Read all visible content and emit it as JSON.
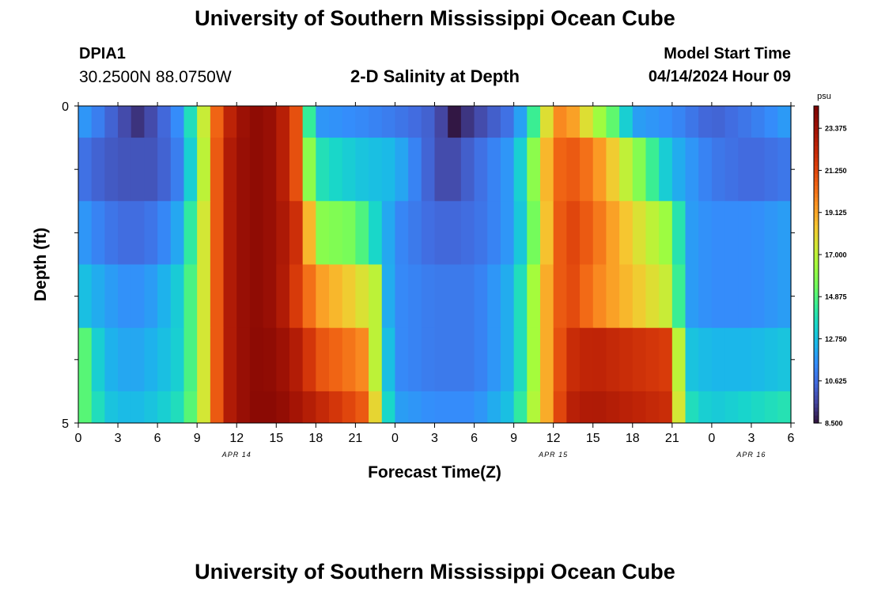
{
  "header": {
    "title": "University of Southern Mississippi Ocean Cube",
    "station": "DPIA1",
    "coordinates": "30.2500N  88.0750W",
    "subtitle": "2-D Salinity at Depth",
    "model_start_label": "Model Start Time",
    "model_start_value": "04/14/2024 Hour 09"
  },
  "footer": {
    "title": "University of Southern Mississippi Ocean Cube"
  },
  "chart_data": {
    "type": "heatmap",
    "title": "2-D Salinity at Depth",
    "xlabel": "Forecast Time(Z)",
    "ylabel": "Depth (ft)",
    "x_hours_range": [
      0,
      54
    ],
    "x_tick_labels": [
      "0",
      "3",
      "6",
      "9",
      "12",
      "15",
      "18",
      "21",
      "0",
      "3",
      "6",
      "9",
      "12",
      "15",
      "18",
      "21",
      "0",
      "3",
      "6"
    ],
    "date_labels": [
      {
        "text": "APR 14",
        "hour": 12
      },
      {
        "text": "APR 15",
        "hour": 36
      },
      {
        "text": "APR 16",
        "hour": 51
      }
    ],
    "y_tick_labels": [
      "0",
      "5"
    ],
    "ylim": [
      0,
      5
    ],
    "colorbar": {
      "unit": "psu",
      "min": 8.5,
      "max": 24.5,
      "tick_labels": [
        "23.375",
        "21.250",
        "19.125",
        "17.000",
        "14.875",
        "12.750",
        "10.625",
        "8.500"
      ],
      "tick_values": [
        23.375,
        21.25,
        19.125,
        17.0,
        14.875,
        12.75,
        10.625,
        8.5
      ]
    },
    "depth_layers": [
      {
        "depth_range": [
          0,
          0.5
        ],
        "key_hours": [
          0,
          1,
          3,
          4.5,
          6,
          8,
          9,
          10,
          11,
          13,
          15,
          16.5,
          17,
          18,
          21,
          24,
          27,
          28,
          28.5,
          29,
          31,
          33,
          34,
          35,
          36,
          37,
          39,
          41,
          42,
          45,
          48,
          51,
          54
        ],
        "key_values": [
          12,
          11.5,
          10,
          9.2,
          10,
          12,
          15.5,
          19,
          22,
          24,
          23.5,
          21,
          17,
          11.8,
          11.5,
          11,
          10.2,
          9,
          8.6,
          9,
          10,
          11,
          13,
          16,
          19.5,
          20,
          17,
          14.5,
          12,
          11.5,
          10.3,
          11,
          12
        ]
      },
      {
        "depth_range": [
          0.5,
          1.5
        ],
        "key_hours": [
          0,
          1,
          3,
          6,
          8,
          9,
          10,
          11,
          13,
          15,
          16.5,
          17,
          18,
          21,
          24,
          27,
          28,
          29,
          31,
          33,
          34,
          35,
          36,
          37,
          39,
          42,
          45,
          48,
          51,
          54
        ],
        "key_values": [
          11,
          10.5,
          10,
          10,
          11.5,
          15,
          19,
          22.5,
          24,
          23.5,
          21,
          18,
          14,
          13,
          12.5,
          10,
          9.5,
          10,
          11,
          12,
          14.5,
          17.5,
          20,
          21,
          20,
          16.5,
          12.5,
          11,
          10.5,
          11
        ]
      },
      {
        "depth_range": [
          1.5,
          2.5
        ],
        "key_hours": [
          0,
          2,
          4,
          6,
          8,
          9,
          10,
          11,
          13,
          15,
          17,
          18,
          21,
          24,
          27,
          29,
          31,
          33,
          34,
          35,
          36,
          37,
          39,
          42,
          45,
          46,
          48,
          51,
          54
        ],
        "key_values": [
          12,
          11,
          10.5,
          11,
          12.5,
          16,
          19,
          22.5,
          24,
          23.5,
          21.5,
          16,
          15.5,
          11.5,
          10.5,
          10.5,
          11,
          12,
          14,
          17,
          20,
          21.5,
          20.5,
          18,
          16,
          12,
          11.5,
          11.5,
          12
        ]
      },
      {
        "depth_range": [
          2.5,
          3.5
        ],
        "key_hours": [
          0,
          2,
          4,
          6,
          8,
          9,
          10,
          11,
          13,
          15,
          17,
          18,
          21,
          22.5,
          23,
          24,
          27,
          30,
          33,
          34,
          35,
          36,
          37,
          39,
          42,
          45,
          46,
          48,
          51,
          54
        ],
        "key_values": [
          13,
          12,
          11.5,
          12,
          13.5,
          16,
          19,
          22.5,
          24,
          23.5,
          21,
          19.5,
          18,
          17,
          13,
          11.5,
          11,
          11,
          12.5,
          15,
          18,
          20,
          21.5,
          20,
          18.5,
          17,
          12,
          11.5,
          11.5,
          12
        ]
      },
      {
        "depth_range": [
          3.5,
          4.5
        ],
        "key_hours": [
          0,
          1,
          2,
          4,
          6,
          8,
          9,
          10,
          11,
          13,
          15,
          17,
          18,
          21,
          22,
          22.5,
          23,
          24,
          27,
          30,
          33,
          34,
          35,
          36,
          37,
          39,
          42,
          45,
          45.5,
          46,
          48,
          51,
          54
        ],
        "key_values": [
          16,
          14,
          12.5,
          12,
          12.5,
          13.5,
          16,
          19,
          22.5,
          24,
          23.8,
          22.5,
          21,
          20,
          19.5,
          17,
          14,
          11.5,
          11,
          11,
          12.5,
          15,
          18,
          20,
          22,
          22.5,
          22,
          21.5,
          17,
          13,
          12.5,
          12.5,
          13
        ]
      },
      {
        "depth_range": [
          4.5,
          5
        ],
        "key_hours": [
          0,
          0.5,
          1,
          2,
          4,
          6,
          8,
          9,
          10,
          11,
          13,
          15,
          17,
          19,
          21,
          22,
          22.5,
          23,
          24,
          27,
          30,
          33,
          34,
          35,
          36,
          37,
          39,
          42,
          45,
          45.5,
          46,
          48,
          51,
          54
        ],
        "key_values": [
          16,
          15,
          14.5,
          13,
          12.5,
          13,
          14,
          16,
          19,
          22.5,
          24,
          24,
          23,
          22,
          21,
          20.5,
          18,
          15,
          12,
          11.5,
          11.5,
          13,
          15.5,
          18,
          20,
          22.5,
          23,
          22.5,
          22,
          17.5,
          14,
          13,
          13.5,
          14
        ]
      }
    ]
  }
}
